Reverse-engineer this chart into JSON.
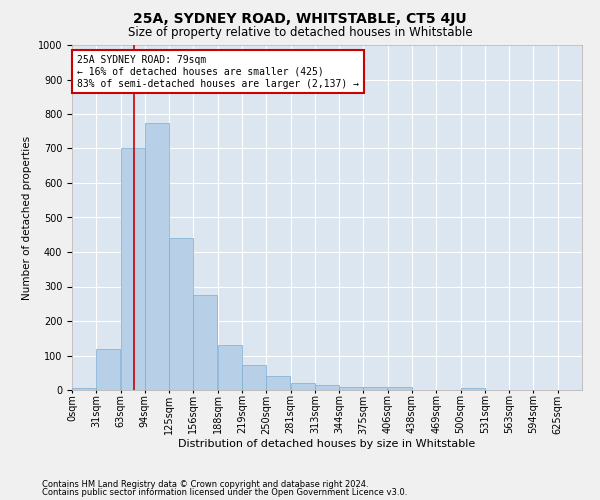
{
  "title": "25A, SYDNEY ROAD, WHITSTABLE, CT5 4JU",
  "subtitle": "Size of property relative to detached houses in Whitstable",
  "xlabel": "Distribution of detached houses by size in Whitstable",
  "ylabel": "Number of detached properties",
  "bar_color": "#b8cfe8",
  "bar_edge_color": "#7aadd4",
  "background_color": "#dce6f0",
  "grid_color": "#ffffff",
  "categories": [
    "0sqm",
    "31sqm",
    "63sqm",
    "94sqm",
    "125sqm",
    "156sqm",
    "188sqm",
    "219sqm",
    "250sqm",
    "281sqm",
    "313sqm",
    "344sqm",
    "375sqm",
    "406sqm",
    "438sqm",
    "469sqm",
    "500sqm",
    "531sqm",
    "563sqm",
    "594sqm",
    "625sqm"
  ],
  "values": [
    5,
    120,
    700,
    775,
    440,
    275,
    130,
    72,
    40,
    20,
    15,
    10,
    10,
    10,
    0,
    0,
    5,
    0,
    0,
    0,
    0
  ],
  "ylim": [
    0,
    1000
  ],
  "yticks": [
    0,
    100,
    200,
    300,
    400,
    500,
    600,
    700,
    800,
    900,
    1000
  ],
  "property_line_x": 79,
  "bin_width": 31,
  "annotation_text": "25A SYDNEY ROAD: 79sqm\n← 16% of detached houses are smaller (425)\n83% of semi-detached houses are larger (2,137) →",
  "annotation_box_color": "#ffffff",
  "annotation_box_edge_color": "#cc0000",
  "fig_bg": "#f0f0f0",
  "title_fontsize": 10,
  "subtitle_fontsize": 8.5,
  "ylabel_fontsize": 7.5,
  "xlabel_fontsize": 8,
  "tick_fontsize": 7,
  "annot_fontsize": 7,
  "footnote1": "Contains HM Land Registry data © Crown copyright and database right 2024.",
  "footnote2": "Contains public sector information licensed under the Open Government Licence v3.0.",
  "footnote_fontsize": 6
}
